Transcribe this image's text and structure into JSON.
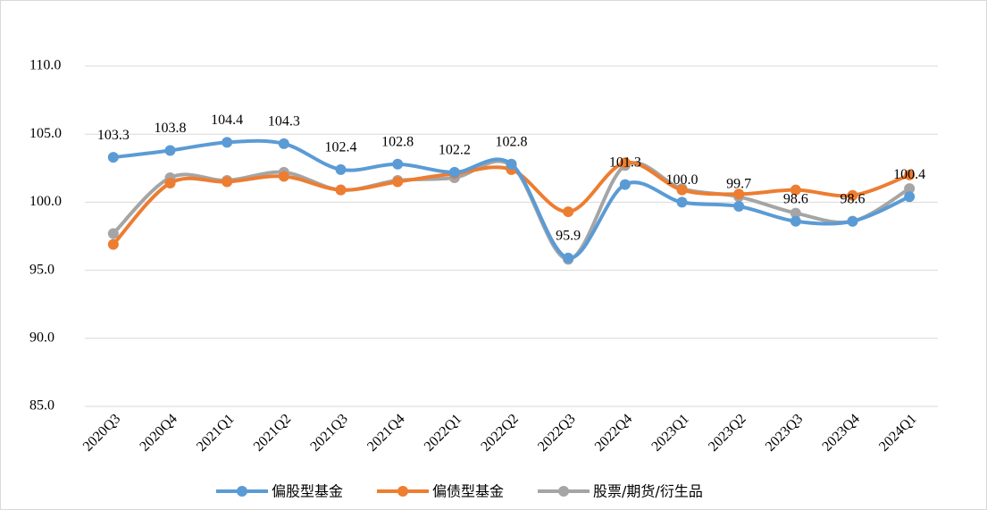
{
  "chart_data": {
    "type": "line",
    "categories": [
      "2020Q3",
      "2020Q4",
      "2021Q1",
      "2021Q2",
      "2021Q3",
      "2021Q4",
      "2022Q1",
      "2022Q2",
      "2022Q3",
      "2022Q4",
      "2023Q1",
      "2023Q2",
      "2023Q3",
      "2023Q4",
      "2024Q1"
    ],
    "series": [
      {
        "name": "偏股型基金",
        "color": "#5b9bd5",
        "values": [
          103.3,
          103.8,
          104.4,
          104.3,
          102.4,
          102.8,
          102.2,
          102.8,
          95.9,
          101.3,
          100.0,
          99.7,
          98.6,
          98.6,
          100.4
        ],
        "value_labels": [
          "103.3",
          "103.8",
          "104.4",
          "104.3",
          "102.4",
          "102.8",
          "102.2",
          "102.8",
          "95.9",
          "101.3",
          "100.0",
          "99.7",
          "98.6",
          "98.6",
          "100.4"
        ]
      },
      {
        "name": "偏债型基金",
        "color": "#ed7d31",
        "values": [
          96.9,
          101.4,
          101.5,
          101.9,
          100.9,
          101.5,
          102.1,
          102.4,
          99.3,
          102.9,
          100.9,
          100.6,
          100.9,
          100.5,
          102.0
        ]
      },
      {
        "name": "股票/期货/衍生品",
        "color": "#a5a5a5",
        "values": [
          97.7,
          101.8,
          101.6,
          102.2,
          100.9,
          101.6,
          101.8,
          102.7,
          95.8,
          102.7,
          101.0,
          100.4,
          99.2,
          98.6,
          101.0
        ]
      }
    ],
    "ylim": [
      85,
      110
    ],
    "yticks": [
      {
        "value": 85,
        "label": "85.0"
      },
      {
        "value": 90,
        "label": "90.0"
      },
      {
        "value": 95,
        "label": "95.0"
      },
      {
        "value": 100,
        "label": "100.0"
      },
      {
        "value": 105,
        "label": "105.0"
      },
      {
        "value": 110,
        "label": "110.0"
      }
    ],
    "grid": true,
    "legend": "bottom"
  }
}
